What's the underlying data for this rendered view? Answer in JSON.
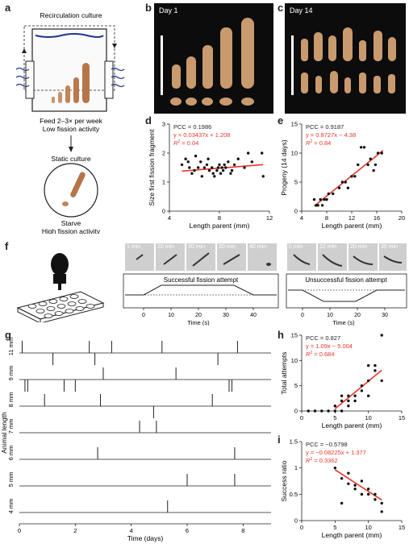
{
  "panels": {
    "a": "a",
    "b": "b",
    "c": "c",
    "d": "d",
    "e": "e",
    "f": "f",
    "g": "g",
    "h": "h",
    "i": "i"
  },
  "panel_a": {
    "top_label": "Recirculation culture",
    "feed_line1": "Feed 2–3× per week",
    "feed_line2": "Low fission activity",
    "static_label": "Static culture",
    "starve_line1": "Starve",
    "starve_line2": "High fission activity"
  },
  "panel_b": {
    "day": "Day 1"
  },
  "panel_c": {
    "day": "Day 14"
  },
  "panel_f": {
    "success_title": "Successful fission attempt",
    "fail_title": "Unsuccessful fission attempt",
    "success_frames": [
      "1 min",
      "10 min",
      "20 min",
      "30 min",
      "40 min"
    ],
    "fail_frames": [
      "0 min",
      "10 min",
      "20 min",
      "30 min"
    ],
    "xlabel": "Time (s)",
    "success_ticks": [
      "0",
      "10",
      "20",
      "30",
      "40"
    ],
    "fail_ticks": [
      "0",
      "10",
      "20",
      "30"
    ]
  },
  "chart_data": [
    {
      "id": "d",
      "type": "scatter",
      "xlabel": "Length parent (mm)",
      "ylabel": "Size first fission fragment",
      "xlim": [
        4,
        12
      ],
      "ylim": [
        0,
        3
      ],
      "xticks": [
        "4",
        "8",
        "12"
      ],
      "yticks": [
        "0",
        "1",
        "2",
        "3"
      ],
      "annotations": [
        "PCC = 0.1986",
        "y = 0.03437x + 1.208",
        "R2 = 0.04"
      ],
      "points": [
        [
          5.0,
          1.6
        ],
        [
          5.3,
          1.8
        ],
        [
          5.5,
          1.7
        ],
        [
          5.6,
          1.5
        ],
        [
          5.8,
          1.3
        ],
        [
          6.0,
          1.4
        ],
        [
          6.1,
          1.9
        ],
        [
          6.3,
          1.5
        ],
        [
          6.5,
          1.7
        ],
        [
          6.6,
          1.2
        ],
        [
          6.8,
          1.5
        ],
        [
          7.0,
          1.6
        ],
        [
          7.1,
          1.8
        ],
        [
          7.2,
          1.4
        ],
        [
          7.4,
          1.5
        ],
        [
          7.5,
          1.3
        ],
        [
          7.6,
          1.2
        ],
        [
          7.8,
          1.4
        ],
        [
          7.9,
          1.5
        ],
        [
          8.0,
          1.6
        ],
        [
          8.1,
          1.3
        ],
        [
          8.2,
          1.5
        ],
        [
          8.3,
          1.4
        ],
        [
          8.4,
          1.6
        ],
        [
          8.5,
          1.5
        ],
        [
          8.7,
          1.7
        ],
        [
          8.9,
          1.3
        ],
        [
          9.0,
          1.4
        ],
        [
          9.2,
          1.6
        ],
        [
          9.5,
          1.8
        ],
        [
          10.0,
          1.5
        ],
        [
          10.3,
          2.0
        ],
        [
          10.6,
          1.7
        ],
        [
          11.4,
          2.0
        ],
        [
          11.5,
          1.2
        ]
      ],
      "fit": {
        "slope": 0.03437,
        "intercept": 1.208,
        "x": [
          5,
          11.5
        ]
      }
    },
    {
      "id": "e",
      "type": "scatter",
      "xlabel": "Length parent (mm)",
      "ylabel": "Progeny (14 days)",
      "xlim": [
        4,
        20
      ],
      "ylim": [
        0,
        15
      ],
      "xticks": [
        "4",
        "8",
        "12",
        "16",
        "20"
      ],
      "yticks": [
        "0",
        "5",
        "10",
        "15"
      ],
      "annotations": [
        "PCC = 0.9187",
        "y = 0.8727x − 4.38",
        "R2 = 0.84"
      ],
      "points": [
        [
          6.0,
          2
        ],
        [
          6.3,
          1
        ],
        [
          6.6,
          1
        ],
        [
          7.0,
          2
        ],
        [
          7.3,
          1
        ],
        [
          7.6,
          2
        ],
        [
          8.0,
          2
        ],
        [
          8.3,
          3
        ],
        [
          9.0,
          3
        ],
        [
          10.0,
          4
        ],
        [
          10.5,
          5
        ],
        [
          11.0,
          5
        ],
        [
          11.4,
          4
        ],
        [
          12.0,
          6
        ],
        [
          12.5,
          6
        ],
        [
          13.0,
          8
        ],
        [
          13.5,
          11
        ],
        [
          14.0,
          11
        ],
        [
          14.6,
          8
        ],
        [
          15.0,
          9
        ],
        [
          15.5,
          7
        ],
        [
          15.8,
          8
        ],
        [
          16.2,
          10
        ],
        [
          16.8,
          10
        ]
      ],
      "fit": {
        "slope": 0.8727,
        "intercept": -4.38,
        "x": [
          6,
          17
        ]
      }
    },
    {
      "id": "g",
      "type": "event-raster",
      "xlabel": "Time (days)",
      "ylabel": "Animal length",
      "xlim": [
        0,
        9
      ],
      "xticks": [
        "0",
        "2",
        "4",
        "6",
        "8"
      ],
      "rows": [
        {
          "label": "11 mm",
          "events": [
            [
              0.1,
              1
            ],
            [
              1.2,
              -1
            ],
            [
              2.5,
              1
            ],
            [
              2.7,
              -1
            ],
            [
              3.3,
              1
            ],
            [
              5.1,
              1
            ],
            [
              7.1,
              -1
            ],
            [
              7.8,
              1
            ]
          ]
        },
        {
          "label": "9 mm",
          "events": [
            [
              0.2,
              -1
            ],
            [
              0.3,
              -1
            ],
            [
              1.6,
              -1
            ],
            [
              2.0,
              -1
            ],
            [
              3.0,
              1
            ],
            [
              5.6,
              1
            ],
            [
              7.5,
              -1
            ],
            [
              7.6,
              -1
            ]
          ]
        },
        {
          "label": "8 mm",
          "events": [
            [
              0.9,
              1
            ],
            [
              2.9,
              1
            ],
            [
              4.8,
              -1
            ],
            [
              6.9,
              1
            ]
          ]
        },
        {
          "label": "7 mm",
          "events": [
            [
              4.3,
              1
            ],
            [
              4.9,
              1
            ]
          ]
        },
        {
          "label": "6 mm",
          "events": [
            [
              2.8,
              1
            ],
            [
              7.7,
              1
            ]
          ]
        },
        {
          "label": "5 mm",
          "events": [
            [
              6.0,
              1
            ],
            [
              7.7,
              1
            ]
          ]
        },
        {
          "label": "4 mm",
          "events": [
            [
              5.3,
              1
            ]
          ]
        }
      ]
    },
    {
      "id": "h",
      "type": "scatter",
      "xlabel": "Length parent (mm)",
      "ylabel": "Total attempts",
      "xlim": [
        0,
        15
      ],
      "ylim": [
        0,
        15
      ],
      "xticks": [
        "0",
        "5",
        "10",
        "15"
      ],
      "yticks": [
        "0",
        "5",
        "10",
        "15"
      ],
      "annotations": [
        "PCC = 0.827",
        "y = 1.09x − 5.004",
        "R2 = 0.684"
      ],
      "points": [
        [
          1,
          0
        ],
        [
          2,
          0
        ],
        [
          3,
          0
        ],
        [
          4,
          0
        ],
        [
          5,
          0
        ],
        [
          5,
          1
        ],
        [
          6,
          0
        ],
        [
          6,
          2
        ],
        [
          6,
          3
        ],
        [
          7,
          1
        ],
        [
          7,
          2
        ],
        [
          7,
          3
        ],
        [
          8,
          2
        ],
        [
          8,
          3
        ],
        [
          9,
          4
        ],
        [
          9,
          5
        ],
        [
          10,
          3
        ],
        [
          10,
          6
        ],
        [
          10,
          9
        ],
        [
          11,
          8
        ],
        [
          11,
          9
        ],
        [
          12,
          6
        ],
        [
          12,
          15
        ]
      ],
      "fit": {
        "slope": 1.09,
        "intercept": -5.004,
        "x": [
          5,
          12
        ]
      }
    },
    {
      "id": "i",
      "type": "scatter",
      "xlabel": "Length parent (mm)",
      "ylabel": "Success ratio",
      "xlim": [
        0,
        15
      ],
      "ylim": [
        0,
        1.5
      ],
      "xticks": [
        "0",
        "5",
        "10",
        "15"
      ],
      "yticks": [
        "0",
        "0.5",
        "1",
        "1.5"
      ],
      "annotations": [
        "PCC = −0.5798",
        "y = −0.08225x + 1.377",
        "R2 = 0.3362"
      ],
      "points": [
        [
          5,
          1.0
        ],
        [
          6,
          0.33
        ],
        [
          6,
          0.8
        ],
        [
          7,
          0.9
        ],
        [
          7,
          0.7
        ],
        [
          8,
          0.67
        ],
        [
          8,
          0.6
        ],
        [
          9,
          0.5
        ],
        [
          9,
          0.75
        ],
        [
          10,
          0.6
        ],
        [
          10,
          0.5
        ],
        [
          11,
          0.4
        ],
        [
          11,
          0.5
        ],
        [
          12,
          0.33
        ],
        [
          12,
          0.17
        ]
      ],
      "fit": {
        "slope": -0.08225,
        "intercept": 1.377,
        "x": [
          5,
          12
        ]
      }
    }
  ]
}
